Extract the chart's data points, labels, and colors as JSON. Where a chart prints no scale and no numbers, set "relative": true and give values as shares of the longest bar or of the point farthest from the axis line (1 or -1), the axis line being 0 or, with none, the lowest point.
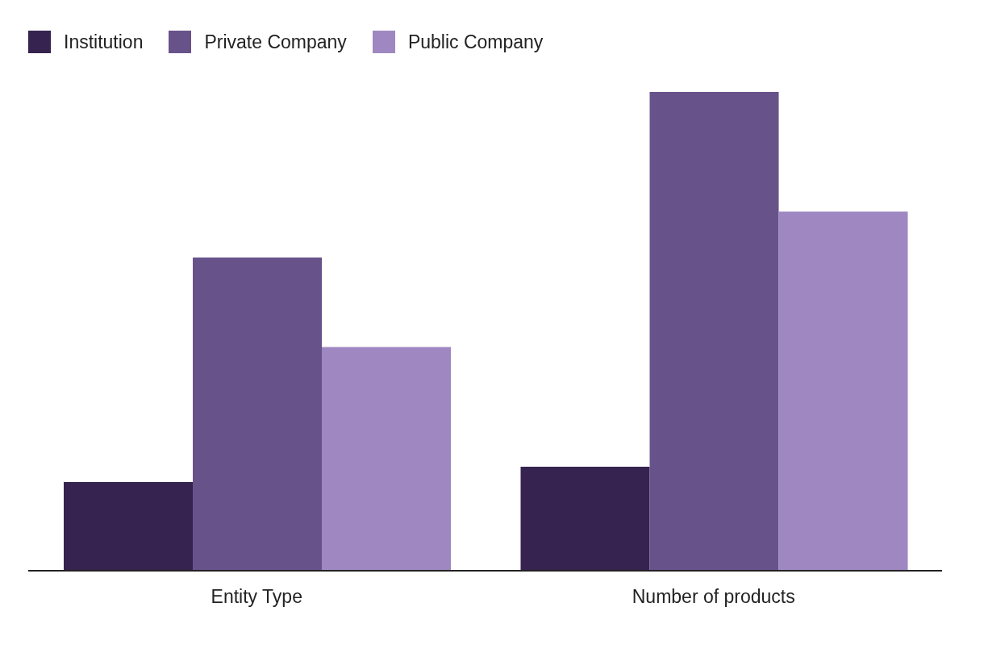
{
  "chart_data": {
    "type": "bar",
    "relative": true,
    "categories": [
      "Entity Type",
      "Number of products"
    ],
    "legend": "top left",
    "grid": false,
    "series": [
      {
        "name": "Institution",
        "color": "#36234f",
        "values": [
          0.185,
          0.217
        ]
      },
      {
        "name": "Private Company",
        "color": "#68528a",
        "values": [
          0.654,
          1
        ]
      },
      {
        "name": "Public Company",
        "color": "#9f88c1",
        "values": [
          0.467,
          0.75
        ]
      }
    ]
  }
}
